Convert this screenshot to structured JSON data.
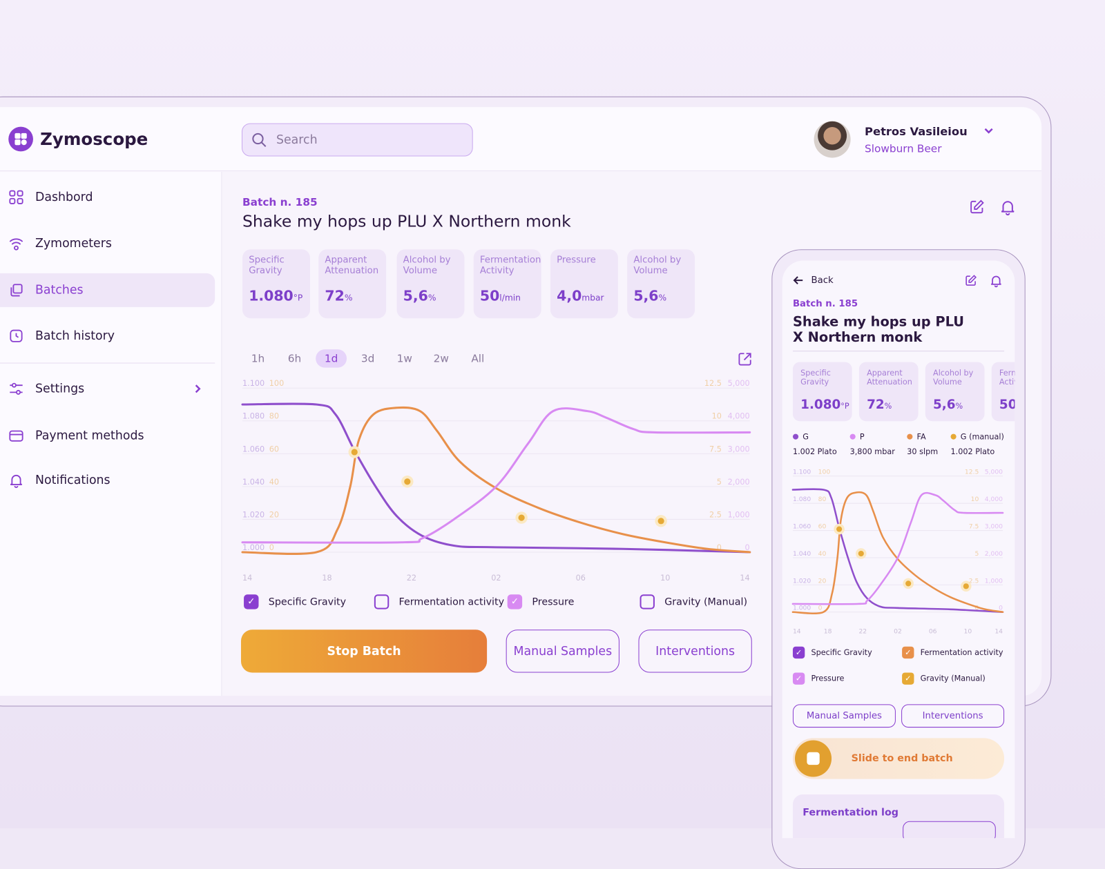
{
  "app": {
    "name": "Zymoscope"
  },
  "search": {
    "placeholder": "Search"
  },
  "user": {
    "name": "Petros Vasileiou",
    "company": "Slowburn Beer"
  },
  "sidebar": {
    "items": [
      {
        "label": "Dashbord"
      },
      {
        "label": "Zymometers"
      },
      {
        "label": "Batches"
      },
      {
        "label": "Batch history"
      },
      {
        "label": "Settings"
      },
      {
        "label": "Payment methods"
      },
      {
        "label": "Notifications"
      }
    ]
  },
  "batch": {
    "number": "Batch n. 185",
    "name": "Shake my hops up PLU X Northern monk"
  },
  "stats": [
    {
      "label": "Specific Gravity",
      "value": "1.080",
      "unit": "°P"
    },
    {
      "label": "Apparent Attenuation",
      "value": "72",
      "unit": "%"
    },
    {
      "label": "Alcohol by Volume",
      "value": "5,6",
      "unit": "%"
    },
    {
      "label": "Fermentation Activity",
      "value": "50",
      "unit": "l/min"
    },
    {
      "label": "Pressure",
      "value": "4,0",
      "unit": "mbar"
    },
    {
      "label": "Alcohol by Volume",
      "value": "5,6",
      "unit": "%"
    }
  ],
  "ranges": [
    "1h",
    "6h",
    "1d",
    "3d",
    "1w",
    "2w",
    "All"
  ],
  "active_range": "1d",
  "series_toggles": [
    {
      "label": "Specific Gravity",
      "checked": true
    },
    {
      "label": "Fermentation activity",
      "checked": false
    },
    {
      "label": "Pressure",
      "checked": true
    },
    {
      "label": "Gravity (Manual)",
      "checked": false
    }
  ],
  "buttons": {
    "stop": "Stop Batch",
    "manual": "Manual Samples",
    "interventions": "Interventions"
  },
  "colors": {
    "gravity": "#8f4fcc",
    "fa": "#e8904a",
    "pressure": "#d88af2",
    "manual": "#e6a935",
    "brand": "#8a3fd0"
  },
  "chart_data": {
    "type": "line",
    "x_ticks": [
      "14",
      "18",
      "22",
      "02",
      "06",
      "10",
      "14"
    ],
    "x_range_hours": [
      0,
      24
    ],
    "axes": {
      "gravity": {
        "range": [
          1.0,
          1.1
        ],
        "ticks": [
          "1.100",
          "1.080",
          "1.060",
          "1.040",
          "1.020",
          "1.000"
        ]
      },
      "fa": {
        "range": [
          0,
          100
        ],
        "ticks": [
          "100",
          "80",
          "60",
          "40",
          "20",
          "0"
        ]
      },
      "right1": {
        "range": [
          0,
          12.5
        ],
        "ticks": [
          "12.5",
          "10",
          "7.5",
          "5",
          "2.5",
          "0"
        ]
      },
      "pressure": {
        "range": [
          0,
          5000
        ],
        "ticks": [
          "5,000",
          "4,000",
          "3,000",
          "2,000",
          "1,000",
          "0"
        ]
      }
    },
    "series": [
      {
        "name": "G",
        "axis": "gravity",
        "color": "#8f4fcc",
        "points": [
          [
            0,
            1.09
          ],
          [
            3.5,
            1.09
          ],
          [
            4.4,
            1.084
          ],
          [
            5.3,
            1.062
          ],
          [
            6.3,
            1.04
          ],
          [
            7.3,
            1.022
          ],
          [
            8.5,
            1.01
          ],
          [
            10,
            1.004
          ],
          [
            12,
            1.003
          ],
          [
            18,
            1.002
          ],
          [
            24,
            1.0
          ]
        ]
      },
      {
        "name": "FA",
        "axis": "fa",
        "color": "#e8904a",
        "points": [
          [
            0,
            0
          ],
          [
            3.5,
            0
          ],
          [
            4.5,
            14
          ],
          [
            5.1,
            40
          ],
          [
            5.5,
            68
          ],
          [
            6.2,
            84
          ],
          [
            7.3,
            88
          ],
          [
            8.4,
            86
          ],
          [
            9.2,
            74
          ],
          [
            10.3,
            55
          ],
          [
            12,
            39
          ],
          [
            14,
            27
          ],
          [
            16,
            18
          ],
          [
            18,
            11
          ],
          [
            20,
            6
          ],
          [
            22,
            2
          ],
          [
            24,
            0
          ]
        ]
      },
      {
        "name": "P",
        "axis": "pressure",
        "color": "#d88af2",
        "points": [
          [
            0,
            300
          ],
          [
            7.5,
            300
          ],
          [
            8.5,
            420
          ],
          [
            10,
            1000
          ],
          [
            12,
            2000
          ],
          [
            13.5,
            3300
          ],
          [
            14.7,
            4300
          ],
          [
            16.3,
            4300
          ],
          [
            17.2,
            4100
          ],
          [
            18.5,
            3750
          ],
          [
            19.5,
            3650
          ],
          [
            24,
            3650
          ]
        ]
      },
      {
        "name": "G (manual)",
        "axis": "gravity",
        "color": "#e6a935",
        "type": "scatter",
        "points": [
          [
            5.3,
            1.061
          ],
          [
            7.8,
            1.043
          ],
          [
            13.2,
            1.021
          ],
          [
            19.8,
            1.019
          ]
        ]
      }
    ]
  },
  "mobile": {
    "back": "Back",
    "legend": [
      {
        "name": "G",
        "value": "1.002 Plato"
      },
      {
        "name": "P",
        "value": "3,800 mbar"
      },
      {
        "name": "FA",
        "value": "30 slpm"
      },
      {
        "name": "G (manual)",
        "value": "1.002 Plato"
      }
    ],
    "toggles": [
      {
        "label": "Specific Gravity"
      },
      {
        "label": "Fermentation activity"
      },
      {
        "label": "Pressure"
      },
      {
        "label": "Gravity (Manual)"
      }
    ],
    "slide": "Slide to end batch",
    "log_title": "Fermentation log"
  }
}
